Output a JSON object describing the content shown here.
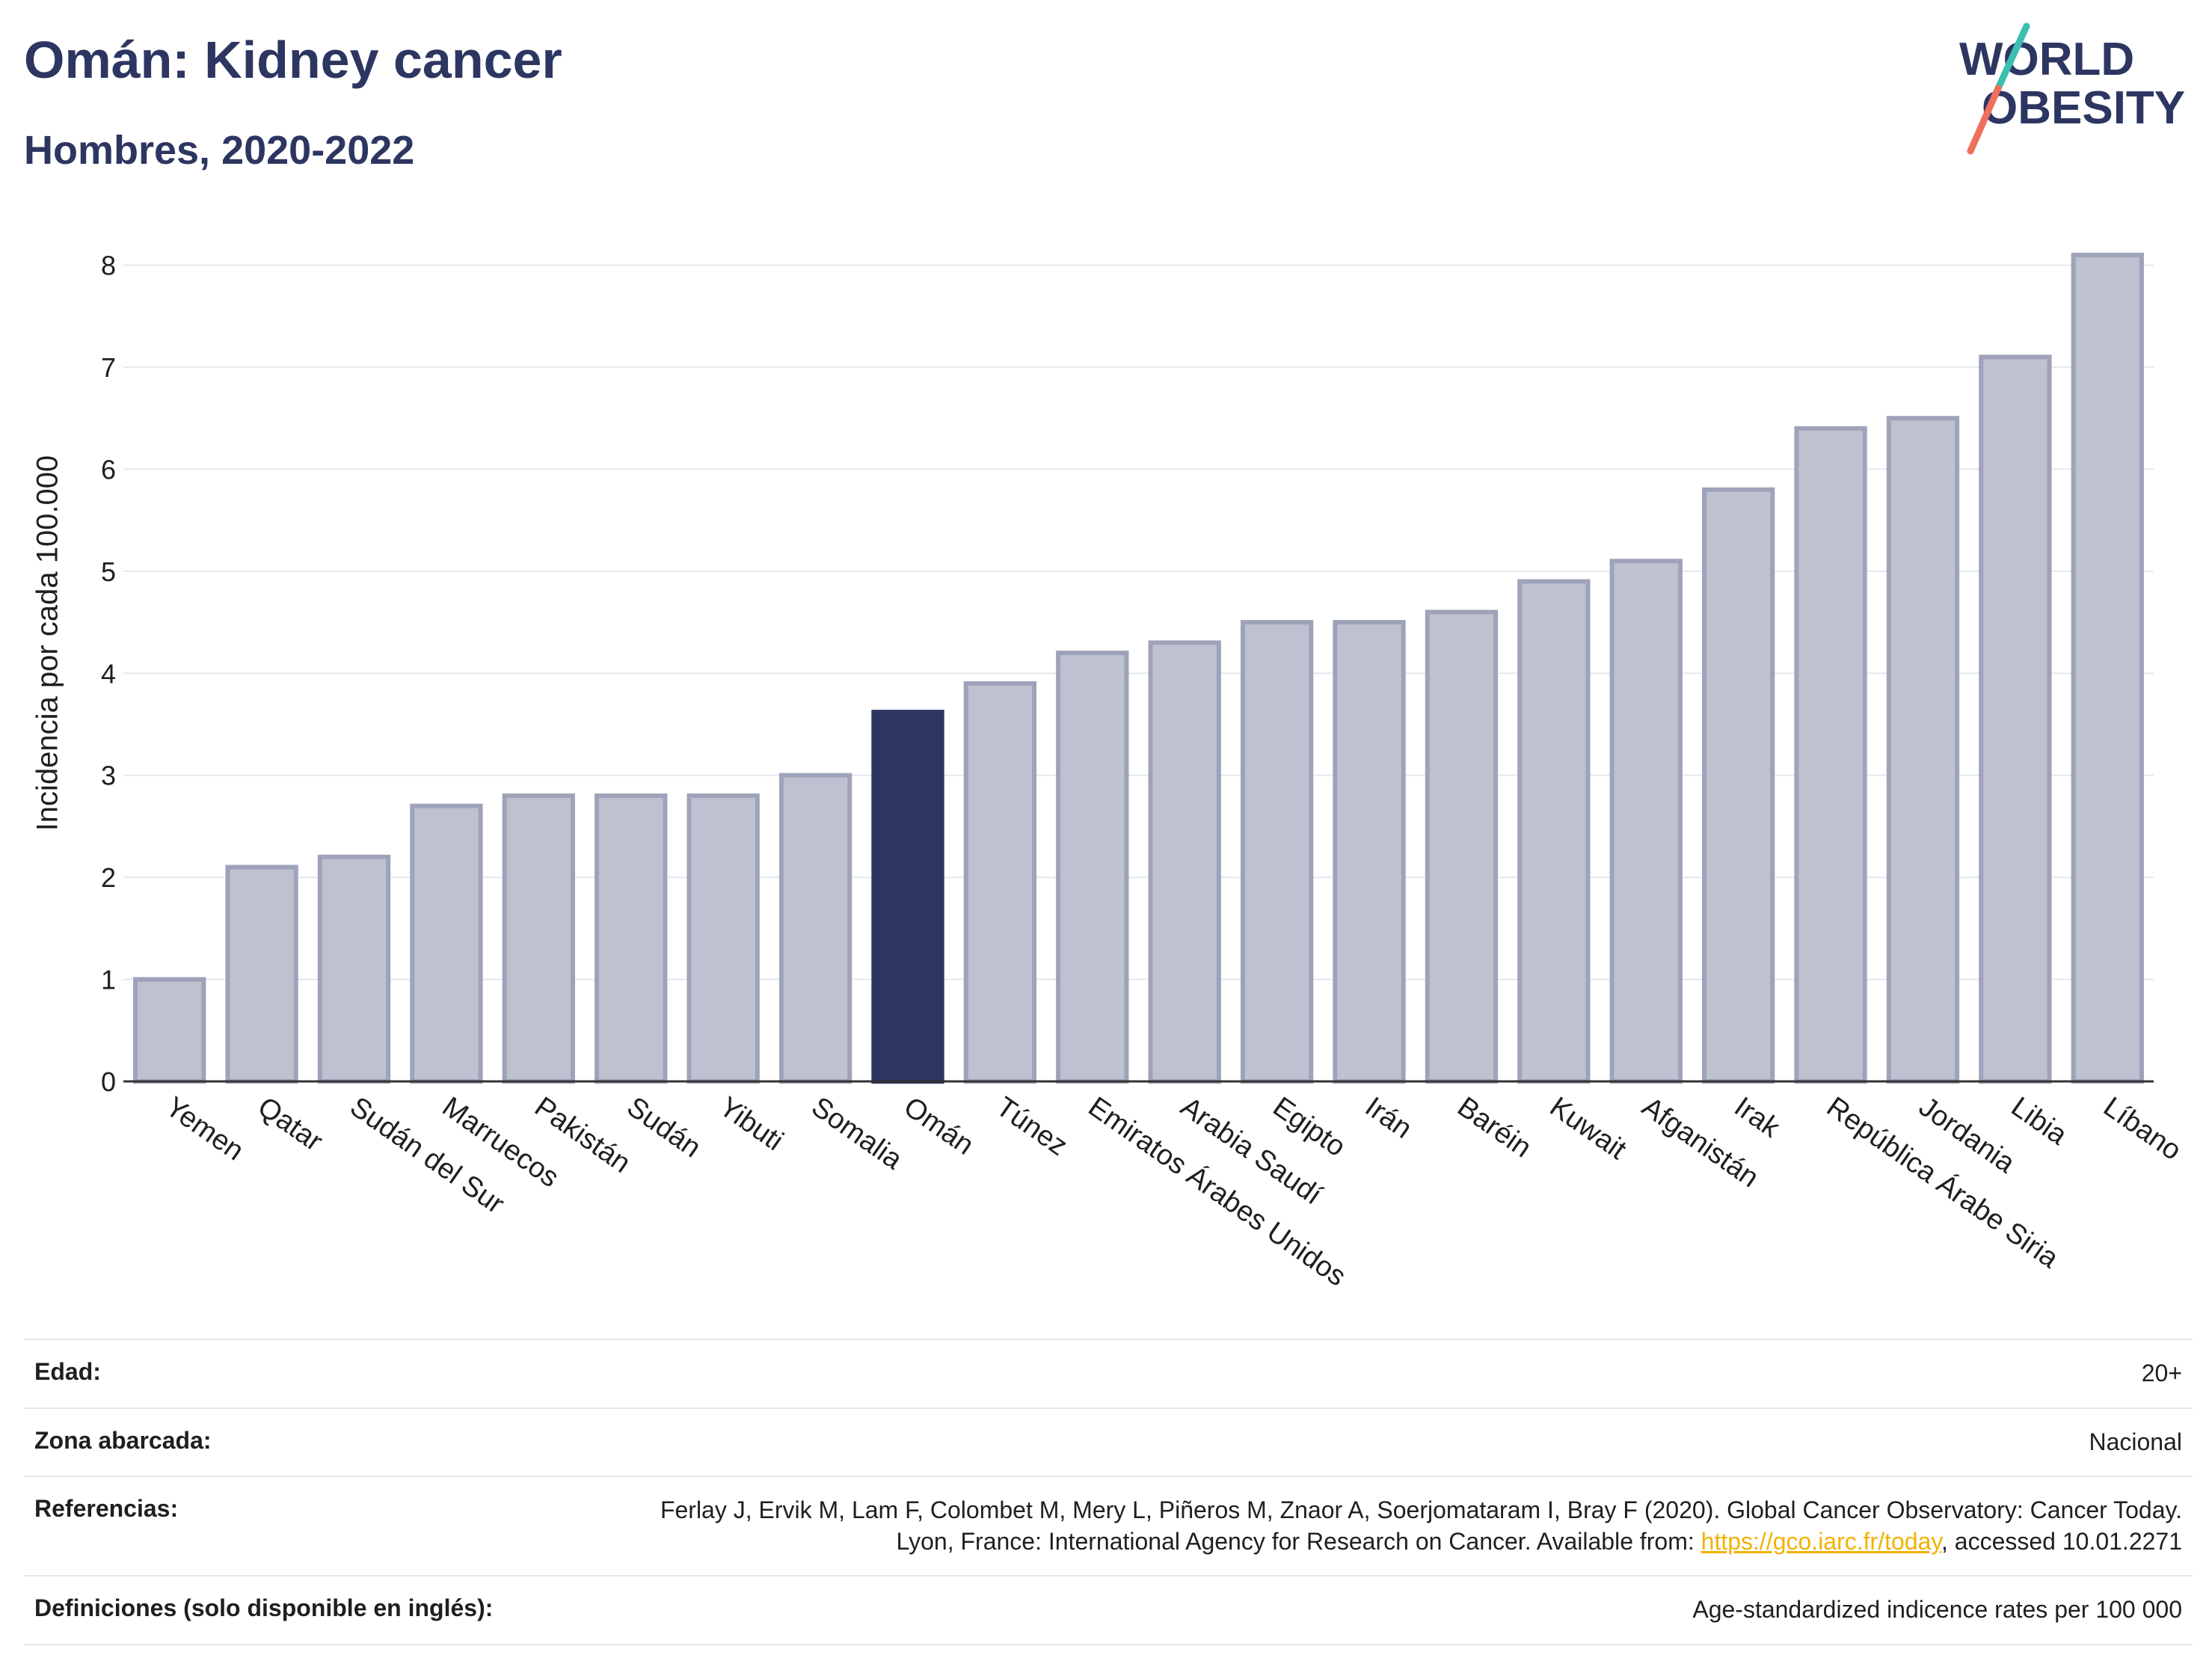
{
  "header": {
    "title": "Omán: Kidney cancer",
    "subtitle": "Hombres, 2020-2022"
  },
  "logo": {
    "line1": "WORLD",
    "line2": "OBESITY"
  },
  "chart_data": {
    "type": "bar",
    "categories": [
      "Yemen",
      "Qatar",
      "Sudán del Sur",
      "Marruecos",
      "Pakistán",
      "Sudán",
      "Yibuti",
      "Somalia",
      "Omán",
      "Túnez",
      "Emiratos Árabes Unidos",
      "Arabia Saudí",
      "Egipto",
      "Irán",
      "Baréin",
      "Kuwait",
      "Afganistán",
      "Irak",
      "República Árabe Siria",
      "Jordania",
      "Libia",
      "Líbano"
    ],
    "values": [
      1.0,
      2.1,
      2.2,
      2.7,
      2.8,
      2.8,
      2.8,
      3.0,
      3.62,
      3.9,
      4.2,
      4.3,
      4.5,
      4.5,
      4.6,
      4.9,
      5.1,
      5.8,
      6.4,
      6.5,
      7.1,
      8.1
    ],
    "highlight": "Omán",
    "ylabel": "Incidencia por cada 100.000",
    "ylim": [
      0,
      8.4
    ],
    "yticks": [
      0,
      1,
      2,
      3,
      4,
      5,
      6,
      7,
      8
    ],
    "grid": true,
    "colors": {
      "bar": "#bec1cf",
      "bar_border": "#9ea3b9",
      "highlight": "#2d3561"
    }
  },
  "meta": [
    {
      "key": "Edad:",
      "value": "20+"
    },
    {
      "key": "Zona abarcada:",
      "value": "Nacional"
    },
    {
      "key": "Referencias:",
      "value_pre": "Ferlay J, Ervik M, Lam F, Colombet M, Mery L, Piñeros M, Znaor A, Soerjomataram I, Bray F (2020). Global Cancer Observatory: Cancer Today. Lyon, France: International Agency for Research on Cancer. Available from: ",
      "link": "https://gco.iarc.fr/today",
      "value_post": ", accessed 10.01.2271"
    },
    {
      "key": "Definiciones (solo disponible en inglés):",
      "value": "Age-standardized indicence rates per 100 000"
    }
  ]
}
